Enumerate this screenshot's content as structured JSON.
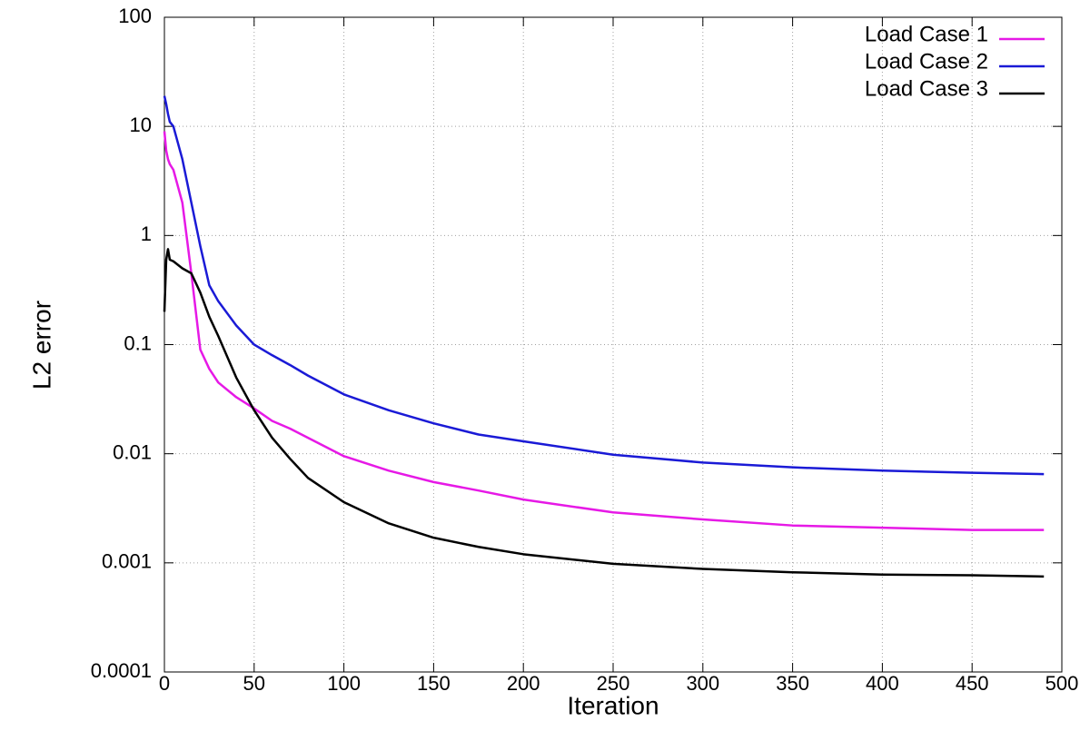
{
  "chart_data": {
    "type": "line",
    "x_label": "Iteration",
    "y_label": "L2 error",
    "y_scale": "log",
    "grid": true,
    "legend_position": "top-right",
    "xlim": [
      0,
      500
    ],
    "ylim": [
      0.0001,
      100
    ],
    "xticks": [
      0,
      50,
      100,
      150,
      200,
      250,
      300,
      350,
      400,
      450,
      500
    ],
    "yticks": [
      0.0001,
      0.001,
      0.01,
      0.1,
      1,
      10,
      100
    ],
    "x": [
      0,
      1,
      2,
      3,
      5,
      10,
      15,
      20,
      25,
      30,
      40,
      50,
      60,
      70,
      80,
      100,
      125,
      150,
      175,
      200,
      250,
      300,
      350,
      400,
      450,
      490
    ],
    "series": [
      {
        "name": "Load Case 1",
        "color": "#e619e6",
        "values": [
          9,
          6,
          5,
          4.5,
          4,
          2,
          0.45,
          0.09,
          0.06,
          0.045,
          0.033,
          0.026,
          0.02,
          0.017,
          0.014,
          0.0095,
          0.007,
          0.0055,
          0.0046,
          0.0038,
          0.0029,
          0.0025,
          0.0022,
          0.0021,
          0.002,
          0.002
        ]
      },
      {
        "name": "Load Case 2",
        "color": "#1a1ad6",
        "values": [
          19,
          16,
          13,
          11,
          10,
          5,
          2,
          0.8,
          0.35,
          0.25,
          0.15,
          0.1,
          0.08,
          0.065,
          0.052,
          0.035,
          0.025,
          0.019,
          0.015,
          0.013,
          0.0098,
          0.0083,
          0.0075,
          0.007,
          0.0067,
          0.0065
        ]
      },
      {
        "name": "Load Case 3",
        "color": "#000000",
        "values": [
          0.2,
          0.6,
          0.75,
          0.6,
          0.58,
          0.5,
          0.45,
          0.3,
          0.18,
          0.12,
          0.05,
          0.025,
          0.014,
          0.009,
          0.006,
          0.0036,
          0.0023,
          0.0017,
          0.0014,
          0.0012,
          0.00098,
          0.00088,
          0.00082,
          0.00078,
          0.00077,
          0.00075
        ]
      }
    ]
  }
}
